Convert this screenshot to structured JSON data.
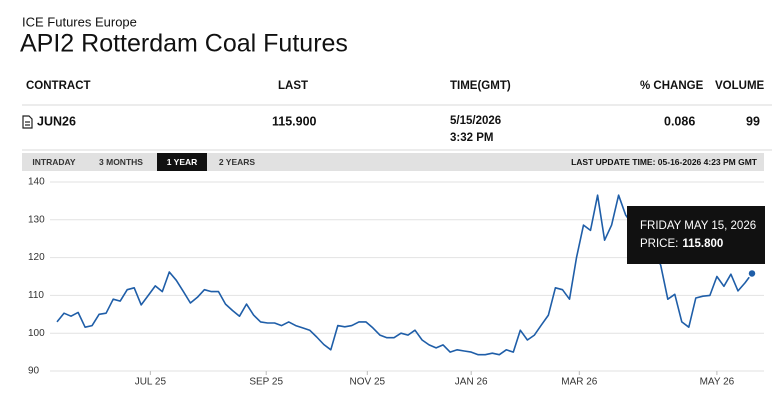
{
  "header": {
    "subtitle": "ICE Futures Europe",
    "title": "API2 Rotterdam Coal Futures"
  },
  "table": {
    "columns": [
      "CONTRACT",
      "LAST",
      "TIME(GMT)",
      "% CHANGE",
      "VOLUME"
    ],
    "rows": [
      [
        "JUN26",
        "115.900",
        {
          "date": "5/15/2026",
          "time": "3:32 PM"
        },
        "0.086",
        "99"
      ]
    ]
  },
  "tabs": [
    {
      "label": "INTRADAY",
      "selected": false
    },
    {
      "label": "3 MONTHS",
      "selected": false
    },
    {
      "label": "1 YEAR",
      "selected": true
    },
    {
      "label": "2 YEARS",
      "selected": false
    }
  ],
  "last_update": "LAST UPDATE TIME: 05-16-2026 4:23 PM GMT",
  "chart_data": {
    "type": "line",
    "color": "#1f5ea8",
    "grid": true,
    "values": [
      103,
      105.3,
      104.5,
      105.5,
      101.6,
      102,
      105,
      105.3,
      109,
      108.5,
      111.5,
      112,
      107.5,
      110,
      112.5,
      111,
      116.2,
      114,
      111,
      108,
      109.5,
      111.5,
      111,
      111,
      107.7,
      106,
      104.5,
      107.7,
      104.8,
      103,
      102.7,
      102.7,
      102,
      103,
      102,
      101.4,
      100.8,
      99,
      97,
      95.6,
      102,
      101.7,
      102,
      103,
      103,
      101.4,
      99.5,
      98.8,
      98.8,
      100,
      99.5,
      100.8,
      98.2,
      96.9,
      96.1,
      96.9,
      95,
      95.6,
      95.3,
      95,
      94.3,
      94.3,
      94.7,
      94.3,
      95.6,
      95,
      100.8,
      98.2,
      99.5,
      102.2,
      104.8,
      112,
      111.5,
      109,
      120,
      128.6,
      127.2,
      136.5,
      124.6,
      128.6,
      136.5,
      131.3,
      128.6,
      130,
      124.6,
      122,
      118,
      109,
      110.3,
      103,
      101.6,
      109.3,
      109.8,
      110,
      115,
      112.4,
      115.6,
      111.2,
      113.3,
      115.8
    ],
    "xlim": [
      0,
      99
    ],
    "xticks": [
      {
        "value": 13.3,
        "label": "JUL 25"
      },
      {
        "value": 29.8,
        "label": "SEP 25"
      },
      {
        "value": 44.2,
        "label": "NOV 25"
      },
      {
        "value": 59,
        "label": "JAN 26"
      },
      {
        "value": 74.4,
        "label": "MAR 26"
      },
      {
        "value": 94,
        "label": "MAY 26"
      }
    ],
    "ylim": [
      90,
      140
    ],
    "yticks": [
      90,
      100,
      110,
      120,
      130,
      140
    ],
    "tooltip": {
      "date": "FRIDAY MAY 15, 2026",
      "label": "PRICE:",
      "value": "115.800"
    }
  }
}
